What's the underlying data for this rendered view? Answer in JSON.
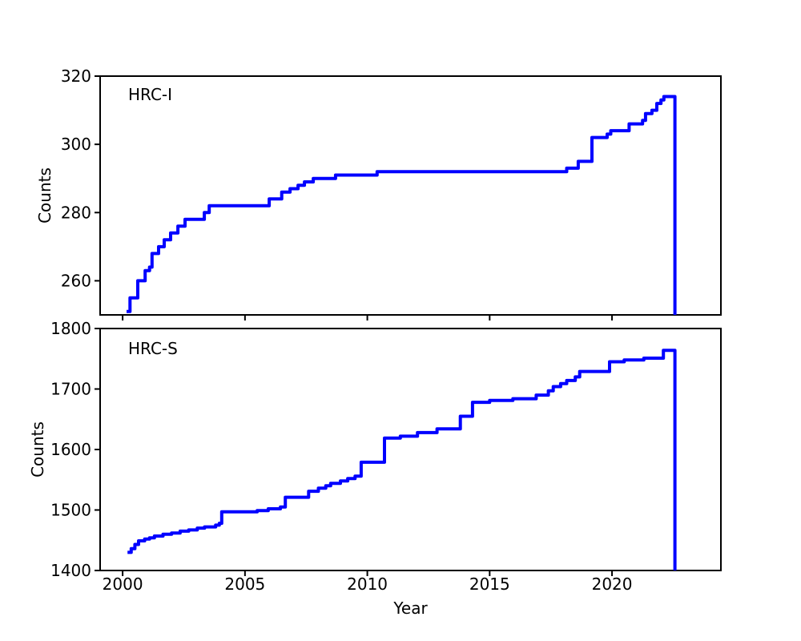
{
  "figure": {
    "background": "#ffffff",
    "axis_color": "#000000",
    "line_color": "#0000ff",
    "xlabel": "Year"
  },
  "chart_data": [
    {
      "type": "line",
      "style": "step-post",
      "label": "HRC-I",
      "ylabel": "Counts",
      "xlabel": "",
      "xlim": [
        1999.08,
        2024.45
      ],
      "ylim": [
        250,
        320
      ],
      "xticks": [
        2000,
        2005,
        2010,
        2015,
        2020
      ],
      "xtick_labels_visible": false,
      "yticks": [
        260,
        280,
        300,
        320
      ],
      "grid": false,
      "legend": "none",
      "points": [
        [
          2000.16,
          251
        ],
        [
          2000.3,
          255
        ],
        [
          2000.62,
          260
        ],
        [
          2000.92,
          263
        ],
        [
          2001.1,
          264
        ],
        [
          2001.2,
          268
        ],
        [
          2001.47,
          270
        ],
        [
          2001.7,
          272
        ],
        [
          2001.96,
          274
        ],
        [
          2002.26,
          276
        ],
        [
          2002.55,
          278
        ],
        [
          2003.34,
          280
        ],
        [
          2003.54,
          282
        ],
        [
          2005.99,
          284
        ],
        [
          2006.5,
          286
        ],
        [
          2006.84,
          287
        ],
        [
          2007.17,
          288
        ],
        [
          2007.43,
          289
        ],
        [
          2007.79,
          290
        ],
        [
          2008.7,
          291
        ],
        [
          2010.4,
          292
        ],
        [
          2018.15,
          293
        ],
        [
          2018.62,
          295
        ],
        [
          2019.18,
          302
        ],
        [
          2019.8,
          303
        ],
        [
          2019.95,
          304
        ],
        [
          2020.7,
          306
        ],
        [
          2021.25,
          307
        ],
        [
          2021.37,
          309
        ],
        [
          2021.63,
          310
        ],
        [
          2021.83,
          312
        ],
        [
          2022.0,
          313
        ],
        [
          2022.12,
          314
        ],
        [
          2022.57,
          250
        ]
      ]
    },
    {
      "type": "line",
      "style": "step-post",
      "label": "HRC-S",
      "ylabel": "Counts",
      "xlabel": "Year",
      "xlim": [
        1999.08,
        2024.45
      ],
      "ylim": [
        1400,
        1800
      ],
      "xticks": [
        2000,
        2005,
        2010,
        2015,
        2020
      ],
      "xtick_labels_visible": true,
      "yticks": [
        1400,
        1500,
        1600,
        1700,
        1800
      ],
      "grid": false,
      "legend": "none",
      "points": [
        [
          2000.2,
          1430
        ],
        [
          2000.35,
          1436
        ],
        [
          2000.5,
          1443
        ],
        [
          2000.65,
          1449
        ],
        [
          2000.9,
          1452
        ],
        [
          2001.1,
          1454
        ],
        [
          2001.3,
          1457
        ],
        [
          2001.65,
          1460
        ],
        [
          2002.0,
          1462
        ],
        [
          2002.35,
          1465
        ],
        [
          2002.7,
          1467
        ],
        [
          2003.05,
          1470
        ],
        [
          2003.35,
          1472
        ],
        [
          2003.8,
          1475
        ],
        [
          2003.95,
          1478
        ],
        [
          2004.05,
          1497
        ],
        [
          2005.5,
          1499
        ],
        [
          2005.95,
          1502
        ],
        [
          2006.45,
          1505
        ],
        [
          2006.65,
          1521
        ],
        [
          2007.6,
          1531
        ],
        [
          2008.0,
          1536
        ],
        [
          2008.3,
          1540
        ],
        [
          2008.5,
          1544
        ],
        [
          2008.9,
          1548
        ],
        [
          2009.2,
          1552
        ],
        [
          2009.5,
          1556
        ],
        [
          2009.75,
          1579
        ],
        [
          2010.7,
          1619
        ],
        [
          2011.35,
          1622
        ],
        [
          2012.05,
          1628
        ],
        [
          2012.85,
          1634
        ],
        [
          2013.8,
          1655
        ],
        [
          2014.3,
          1678
        ],
        [
          2015.0,
          1681
        ],
        [
          2015.95,
          1684
        ],
        [
          2016.9,
          1690
        ],
        [
          2017.4,
          1697
        ],
        [
          2017.6,
          1704
        ],
        [
          2017.9,
          1709
        ],
        [
          2018.15,
          1714
        ],
        [
          2018.5,
          1720
        ],
        [
          2018.68,
          1729
        ],
        [
          2019.9,
          1745
        ],
        [
          2020.5,
          1748
        ],
        [
          2021.3,
          1751
        ],
        [
          2022.1,
          1764
        ],
        [
          2022.57,
          1400
        ]
      ]
    }
  ]
}
